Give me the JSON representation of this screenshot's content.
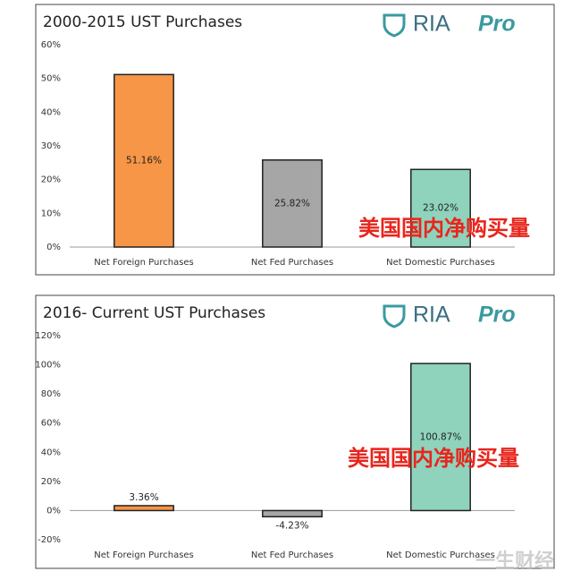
{
  "chart_data": [
    {
      "type": "bar",
      "title": "2000-2015 UST Purchases",
      "logo_main": "RIA",
      "logo_sub": "Pro",
      "categories": [
        "Net Foreign Purchases",
        "Net Fed Purchases",
        "Net Domestic Purchases"
      ],
      "values": [
        51.16,
        25.82,
        23.02
      ],
      "value_labels": [
        "51.16%",
        "25.82%",
        "23.02%"
      ],
      "colors": [
        "#f79646",
        "#a6a6a6",
        "#8fd3bd"
      ],
      "ylim": [
        0,
        60
      ],
      "yticks": [
        {
          "value": 0,
          "label": "0%"
        },
        {
          "value": 10,
          "label": "10%"
        },
        {
          "value": 20,
          "label": "20%"
        },
        {
          "value": 30,
          "label": "30%"
        },
        {
          "value": 40,
          "label": "40%"
        },
        {
          "value": 50,
          "label": "50%"
        },
        {
          "value": 60,
          "label": "60%"
        }
      ],
      "grid": false,
      "annotation": "美国国内净购买量"
    },
    {
      "type": "bar",
      "title": "2016- Current UST Purchases",
      "logo_main": "RIA",
      "logo_sub": "Pro",
      "categories": [
        "Net Foreign Purchases",
        "Net Fed Purchases",
        "Net Domestic Purchases"
      ],
      "values": [
        3.36,
        -4.23,
        100.87
      ],
      "value_labels": [
        "3.36%",
        "-4.23%",
        "100.87%"
      ],
      "colors": [
        "#f79646",
        "#a6a6a6",
        "#8fd3bd"
      ],
      "ylim": [
        -20,
        120
      ],
      "yticks": [
        {
          "value": -20,
          "label": "-20%"
        },
        {
          "value": 0,
          "label": "0%"
        },
        {
          "value": 20,
          "label": "20%"
        },
        {
          "value": 40,
          "label": "40%"
        },
        {
          "value": 60,
          "label": "60%"
        },
        {
          "value": 80,
          "label": "80%"
        },
        {
          "value": 100,
          "label": "100%"
        },
        {
          "value": 120,
          "label": "120%"
        }
      ],
      "grid": false,
      "annotation": "美国国内净购买量"
    }
  ],
  "watermark": "一生财经"
}
